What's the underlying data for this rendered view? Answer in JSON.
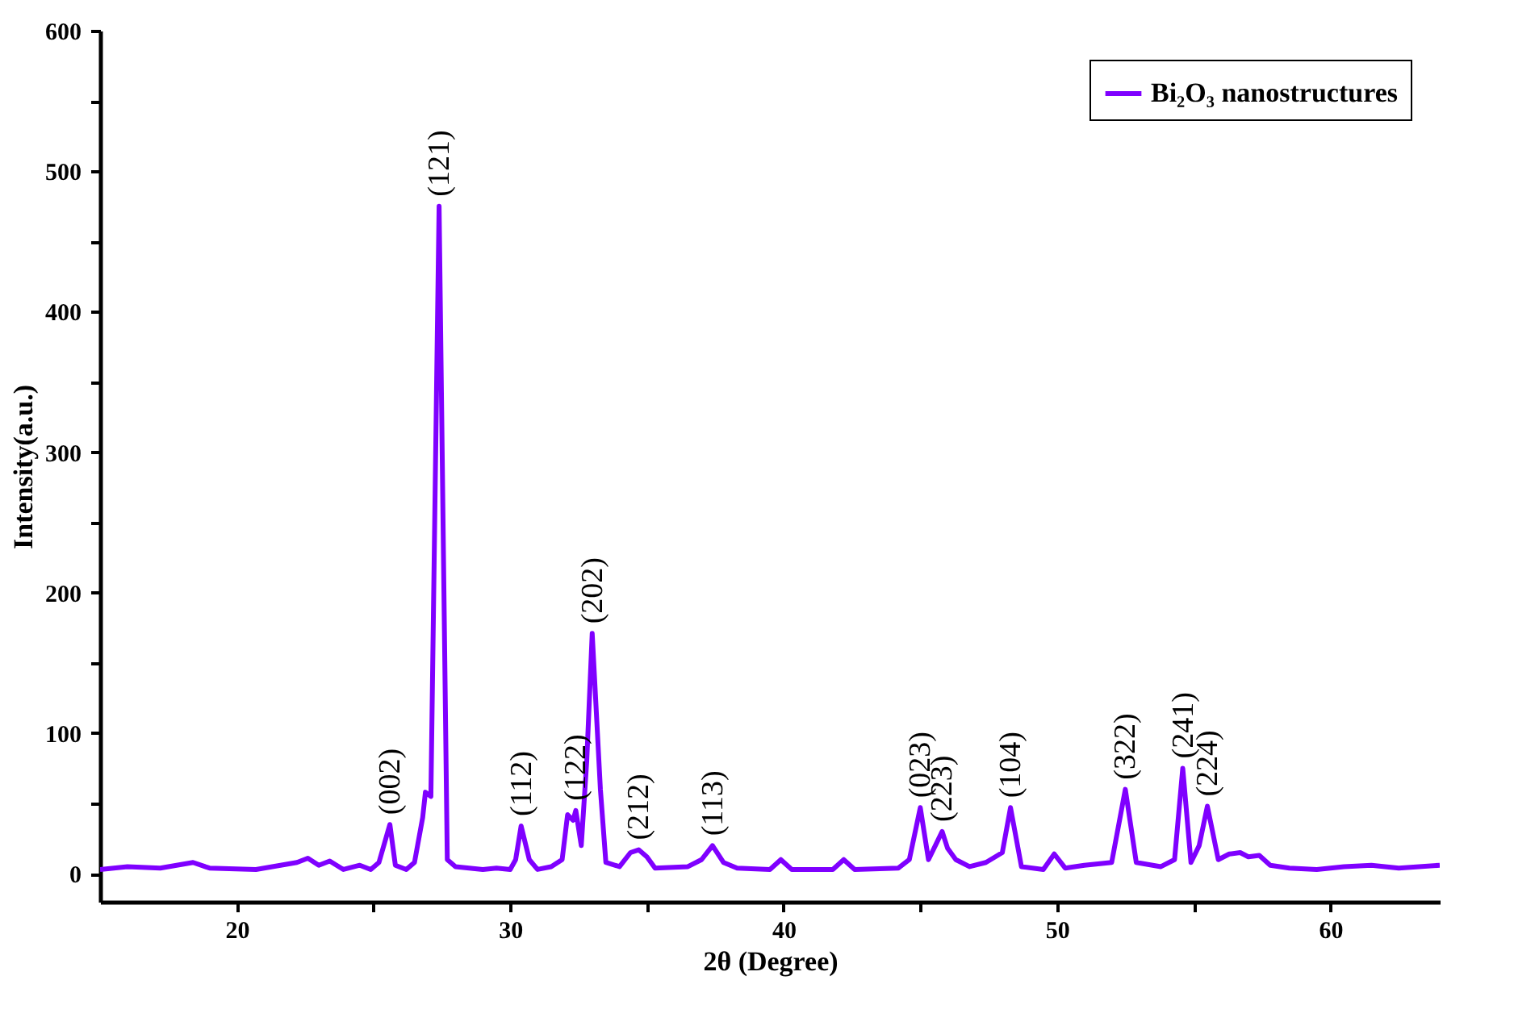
{
  "chart_data": {
    "type": "line",
    "xlabel": "2θ (Degree)",
    "ylabel": "Intensity(a.u.)",
    "xlim": [
      15,
      64
    ],
    "ylim": [
      -20,
      600
    ],
    "xticks": [
      20,
      {
        "value": 25,
        "label": null
      },
      30,
      {
        "value": 35,
        "label": null
      },
      40,
      {
        "value": 45,
        "label": null
      },
      50,
      {
        "value": 55,
        "label": null
      },
      60
    ],
    "yticks": [
      0,
      {
        "value": 50,
        "label": null
      },
      100,
      {
        "value": 150,
        "label": null
      },
      200,
      {
        "value": 250,
        "label": null
      },
      300,
      {
        "value": 350,
        "label": null
      },
      400,
      {
        "value": 450,
        "label": null
      },
      500,
      {
        "value": 550,
        "label": null
      },
      600
    ],
    "grid": false,
    "legend": "top right",
    "marker": "none",
    "line_style": "solid",
    "series": [
      {
        "name": "Bi₂O₃ nanostructures",
        "color": "#7f00ff",
        "x": [
          15.0,
          16.0,
          17.2,
          18.4,
          19.0,
          20.7,
          22.2,
          22.6,
          23.0,
          23.4,
          23.9,
          24.5,
          24.9,
          25.2,
          25.6,
          25.8,
          26.2,
          26.5,
          26.8,
          26.9,
          27.1,
          27.4,
          27.7,
          28.0,
          28.5,
          29.0,
          29.5,
          30.0,
          30.2,
          30.4,
          30.7,
          31.0,
          31.5,
          31.9,
          32.1,
          32.3,
          32.4,
          32.6,
          32.8,
          33.0,
          33.3,
          33.5,
          34.0,
          34.4,
          34.7,
          35.0,
          35.3,
          36.5,
          37.0,
          37.4,
          37.8,
          38.3,
          39.5,
          39.9,
          40.3,
          41.8,
          42.2,
          42.6,
          44.2,
          44.6,
          45.0,
          45.3,
          45.6,
          45.8,
          46.0,
          46.3,
          46.8,
          47.4,
          48.0,
          48.3,
          48.7,
          49.5,
          49.9,
          50.3,
          51.0,
          52.0,
          52.5,
          52.9,
          53.8,
          54.3,
          54.6,
          54.9,
          55.2,
          55.5,
          55.9,
          56.3,
          56.7,
          57.0,
          57.4,
          57.8,
          58.5,
          59.5,
          60.5,
          61.5,
          62.5,
          64.0
        ],
        "values": [
          3,
          5,
          4,
          8,
          4,
          3,
          8,
          11,
          6,
          9,
          3,
          6,
          3,
          8,
          35,
          6,
          3,
          8,
          40,
          58,
          55,
          475,
          10,
          5,
          4,
          3,
          4,
          3,
          10,
          34,
          10,
          3,
          5,
          10,
          42,
          38,
          45,
          20,
          80,
          171,
          60,
          8,
          5,
          15,
          17,
          12,
          4,
          5,
          10,
          20,
          8,
          4,
          3,
          10,
          3,
          3,
          10,
          3,
          4,
          10,
          47,
          10,
          22,
          30,
          18,
          10,
          5,
          8,
          15,
          47,
          5,
          3,
          14,
          4,
          6,
          8,
          60,
          8,
          5,
          10,
          75,
          8,
          20,
          48,
          10,
          14,
          15,
          12,
          13,
          6,
          4,
          3,
          5,
          6,
          4,
          6
        ]
      }
    ],
    "annotations": [
      {
        "text": "(002)",
        "x": 25.6,
        "y": 35
      },
      {
        "text": "(121)",
        "x": 27.4,
        "y": 475
      },
      {
        "text": "(112)",
        "x": 30.4,
        "y": 34
      },
      {
        "text": "(122)",
        "x": 32.4,
        "y": 45
      },
      {
        "text": "(202)",
        "x": 33.0,
        "y": 171
      },
      {
        "text": "(212)",
        "x": 34.7,
        "y": 17
      },
      {
        "text": "(113)",
        "x": 37.4,
        "y": 20
      },
      {
        "text": "(023)",
        "x": 45.0,
        "y": 47
      },
      {
        "text": "(223)",
        "x": 45.8,
        "y": 30
      },
      {
        "text": "(104)",
        "x": 48.3,
        "y": 47
      },
      {
        "text": "(322)",
        "x": 52.5,
        "y": 60
      },
      {
        "text": "(241)",
        "x": 54.6,
        "y": 75
      },
      {
        "text": "(224)",
        "x": 55.5,
        "y": 48
      }
    ]
  }
}
